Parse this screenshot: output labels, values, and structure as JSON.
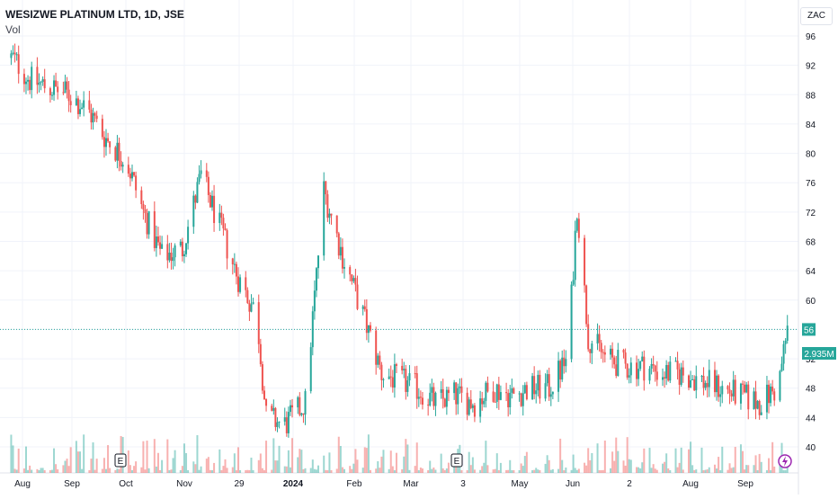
{
  "header": {
    "title": "WESIZWE PLATINUM LTD, 1D, JSE",
    "volume_label": "Vol",
    "currency": "ZAC"
  },
  "price_axis": {
    "ticks": [
      "96",
      "92",
      "88",
      "84",
      "80",
      "76",
      "72",
      "68",
      "64",
      "60",
      "56",
      "52",
      "48",
      "44",
      "40"
    ]
  },
  "badges": {
    "last_price": "56",
    "last_volume": "2.935M"
  },
  "events": [
    {
      "label": "E",
      "date": "Oct"
    },
    {
      "label": "E",
      "date": "Mar"
    }
  ],
  "time_axis": {
    "labels": [
      "Aug",
      "Sep",
      "Oct",
      "Nov",
      "29",
      "2024",
      "Feb",
      "Mar",
      "3",
      "May",
      "Jun",
      "2",
      "Aug",
      "Sep"
    ]
  },
  "colors": {
    "up": "#26a69a",
    "down": "#ef5350",
    "last_price_line": "#26a69a",
    "grid": "#f0f3fa"
  },
  "chart_data": {
    "type": "candlestick",
    "title": "WESIZWE PLATINUM LTD, 1D, JSE",
    "ylim": [
      37,
      98
    ],
    "x_range": [
      "2023-08",
      "2024-09"
    ],
    "series": [
      {
        "name": "price",
        "kind": "ohlc",
        "points": [
          [
            "2023-08-01",
            93
          ],
          [
            "2023-08-10",
            90
          ],
          [
            "2023-08-20",
            89
          ],
          [
            "2023-08-31",
            88
          ],
          [
            "2023-09-10",
            86
          ],
          [
            "2023-09-20",
            82
          ],
          [
            "2023-10-01",
            79
          ],
          [
            "2023-10-10",
            72
          ],
          [
            "2023-10-20",
            66
          ],
          [
            "2023-10-31",
            67
          ],
          [
            "2023-11-10",
            77
          ],
          [
            "2023-11-20",
            70
          ],
          [
            "2023-11-30",
            63
          ],
          [
            "2023-12-10",
            58
          ],
          [
            "2023-12-15",
            44
          ],
          [
            "2023-12-25",
            43
          ],
          [
            "2024-01-05",
            46
          ],
          [
            "2024-01-15",
            75
          ],
          [
            "2024-01-25",
            66
          ],
          [
            "2024-02-05",
            58
          ],
          [
            "2024-02-15",
            50
          ],
          [
            "2024-02-25",
            49
          ],
          [
            "2024-03-05",
            48
          ],
          [
            "2024-03-15",
            46
          ],
          [
            "2024-03-25",
            47
          ],
          [
            "2024-04-05",
            46
          ],
          [
            "2024-04-15",
            48
          ],
          [
            "2024-04-25",
            47
          ],
          [
            "2024-05-05",
            48
          ],
          [
            "2024-05-15",
            48
          ],
          [
            "2024-05-25",
            52
          ],
          [
            "2024-05-30",
            73
          ],
          [
            "2024-06-05",
            55
          ],
          [
            "2024-06-15",
            52
          ],
          [
            "2024-06-25",
            51
          ],
          [
            "2024-07-05",
            51
          ],
          [
            "2024-07-15",
            50
          ],
          [
            "2024-07-25",
            50
          ],
          [
            "2024-08-05",
            49
          ],
          [
            "2024-08-15",
            48
          ],
          [
            "2024-08-25",
            47
          ],
          [
            "2024-09-05",
            46
          ],
          [
            "2024-09-15",
            48
          ],
          [
            "2024-09-20",
            56
          ]
        ]
      }
    ],
    "last_price": 56,
    "last_volume": "2.935M"
  }
}
